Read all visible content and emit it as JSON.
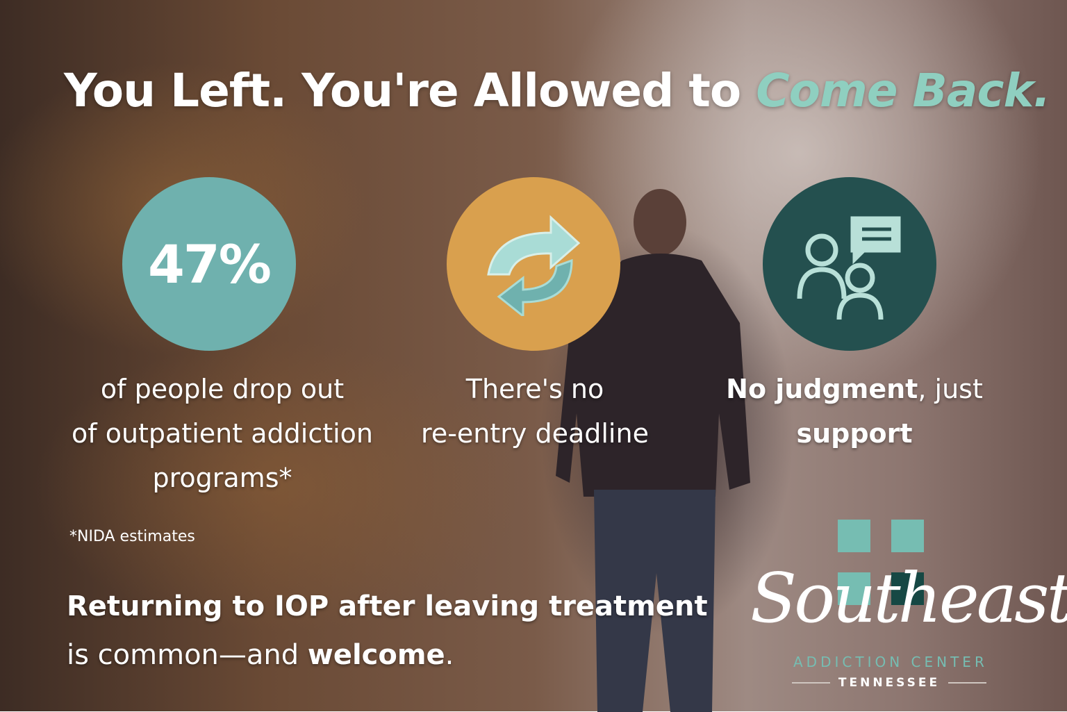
{
  "headline": {
    "part1": "You Left. You're Allowed to ",
    "accent": "Come Back."
  },
  "colors": {
    "accent": "#8fcfc0",
    "teal": "#6fb1ae",
    "gold": "#d9a04e",
    "dark_teal": "#24504f"
  },
  "features": [
    {
      "stat": "47%",
      "caption_line1": "of people drop out",
      "caption_line2": "of outpatient addiction",
      "caption_line3": "programs*"
    },
    {
      "icon": "refresh-arrows-icon",
      "caption_line1": "There's no",
      "caption_line2": "re-entry deadline"
    },
    {
      "icon": "people-chat-icon",
      "caption_bold1": "No judgment",
      "caption_rest1": ", just",
      "caption_bold2": "support"
    }
  ],
  "footnote": "*NIDA estimates",
  "bottom": {
    "bold_line": "Returning to IOP after leaving treatment",
    "line2_start": "is common—and ",
    "line2_bold": "welcome",
    "line2_end": "."
  },
  "logo": {
    "script": "Southeast",
    "subtitle": "ADDICTION CENTER",
    "region": "TENNESSEE"
  }
}
